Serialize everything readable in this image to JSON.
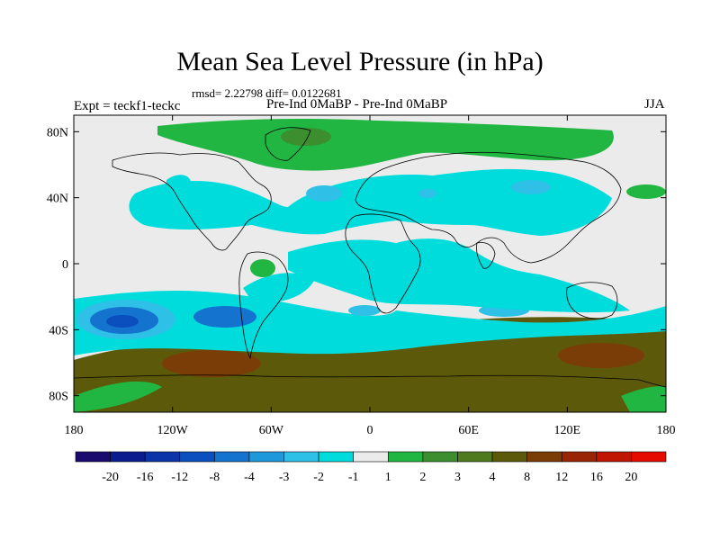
{
  "title": "Mean Sea Level Pressure (in hPa)",
  "stats": "rmsd= 2.22798 diff= 0.0122681",
  "expt": "Expt = teckf1-teckc",
  "subtitle": "Pre-Ind 0MaBP - Pre-Ind 0MaBP",
  "season": "JJA",
  "axes": {
    "lat_ticks": [
      {
        "value": 80,
        "label": "80N"
      },
      {
        "value": 40,
        "label": "40N"
      },
      {
        "value": 0,
        "label": "0"
      },
      {
        "value": -40,
        "label": "40S"
      },
      {
        "value": -80,
        "label": "80S"
      }
    ],
    "lon_ticks": [
      {
        "value": -180,
        "label": "180"
      },
      {
        "value": -120,
        "label": "120W"
      },
      {
        "value": -60,
        "label": "60W"
      },
      {
        "value": 0,
        "label": "0"
      },
      {
        "value": 60,
        "label": "60E"
      },
      {
        "value": 120,
        "label": "120E"
      },
      {
        "value": 180,
        "label": "180"
      }
    ]
  },
  "colorbar": {
    "colors": [
      "#1a0a6e",
      "#0b1d8e",
      "#0a34a8",
      "#0b4fbe",
      "#1473cf",
      "#1d99db",
      "#2ec0e6",
      "#00dcdc",
      "#ebebeb",
      "#21b641",
      "#3d8e2e",
      "#4f7a1e",
      "#5c5a0a",
      "#7a3d07",
      "#9a2406",
      "#c01503",
      "#e60b00"
    ],
    "labels": [
      "-20",
      "-16",
      "-12",
      "-8",
      "-4",
      "-3",
      "-2",
      "-1",
      "1",
      "2",
      "3",
      "4",
      "8",
      "12",
      "16",
      "20"
    ]
  },
  "palette": {
    "neutral": "#ebebeb",
    "cyan": "#00dcdc",
    "lightblue": "#2ec0e6",
    "blue": "#1473cf",
    "darkblue": "#0b4fbe",
    "green": "#21b641",
    "darkgreen": "#3d8e2e",
    "olive": "#4f7a1e",
    "brown": "#5c5a0a",
    "redbrown": "#7a3d07"
  }
}
